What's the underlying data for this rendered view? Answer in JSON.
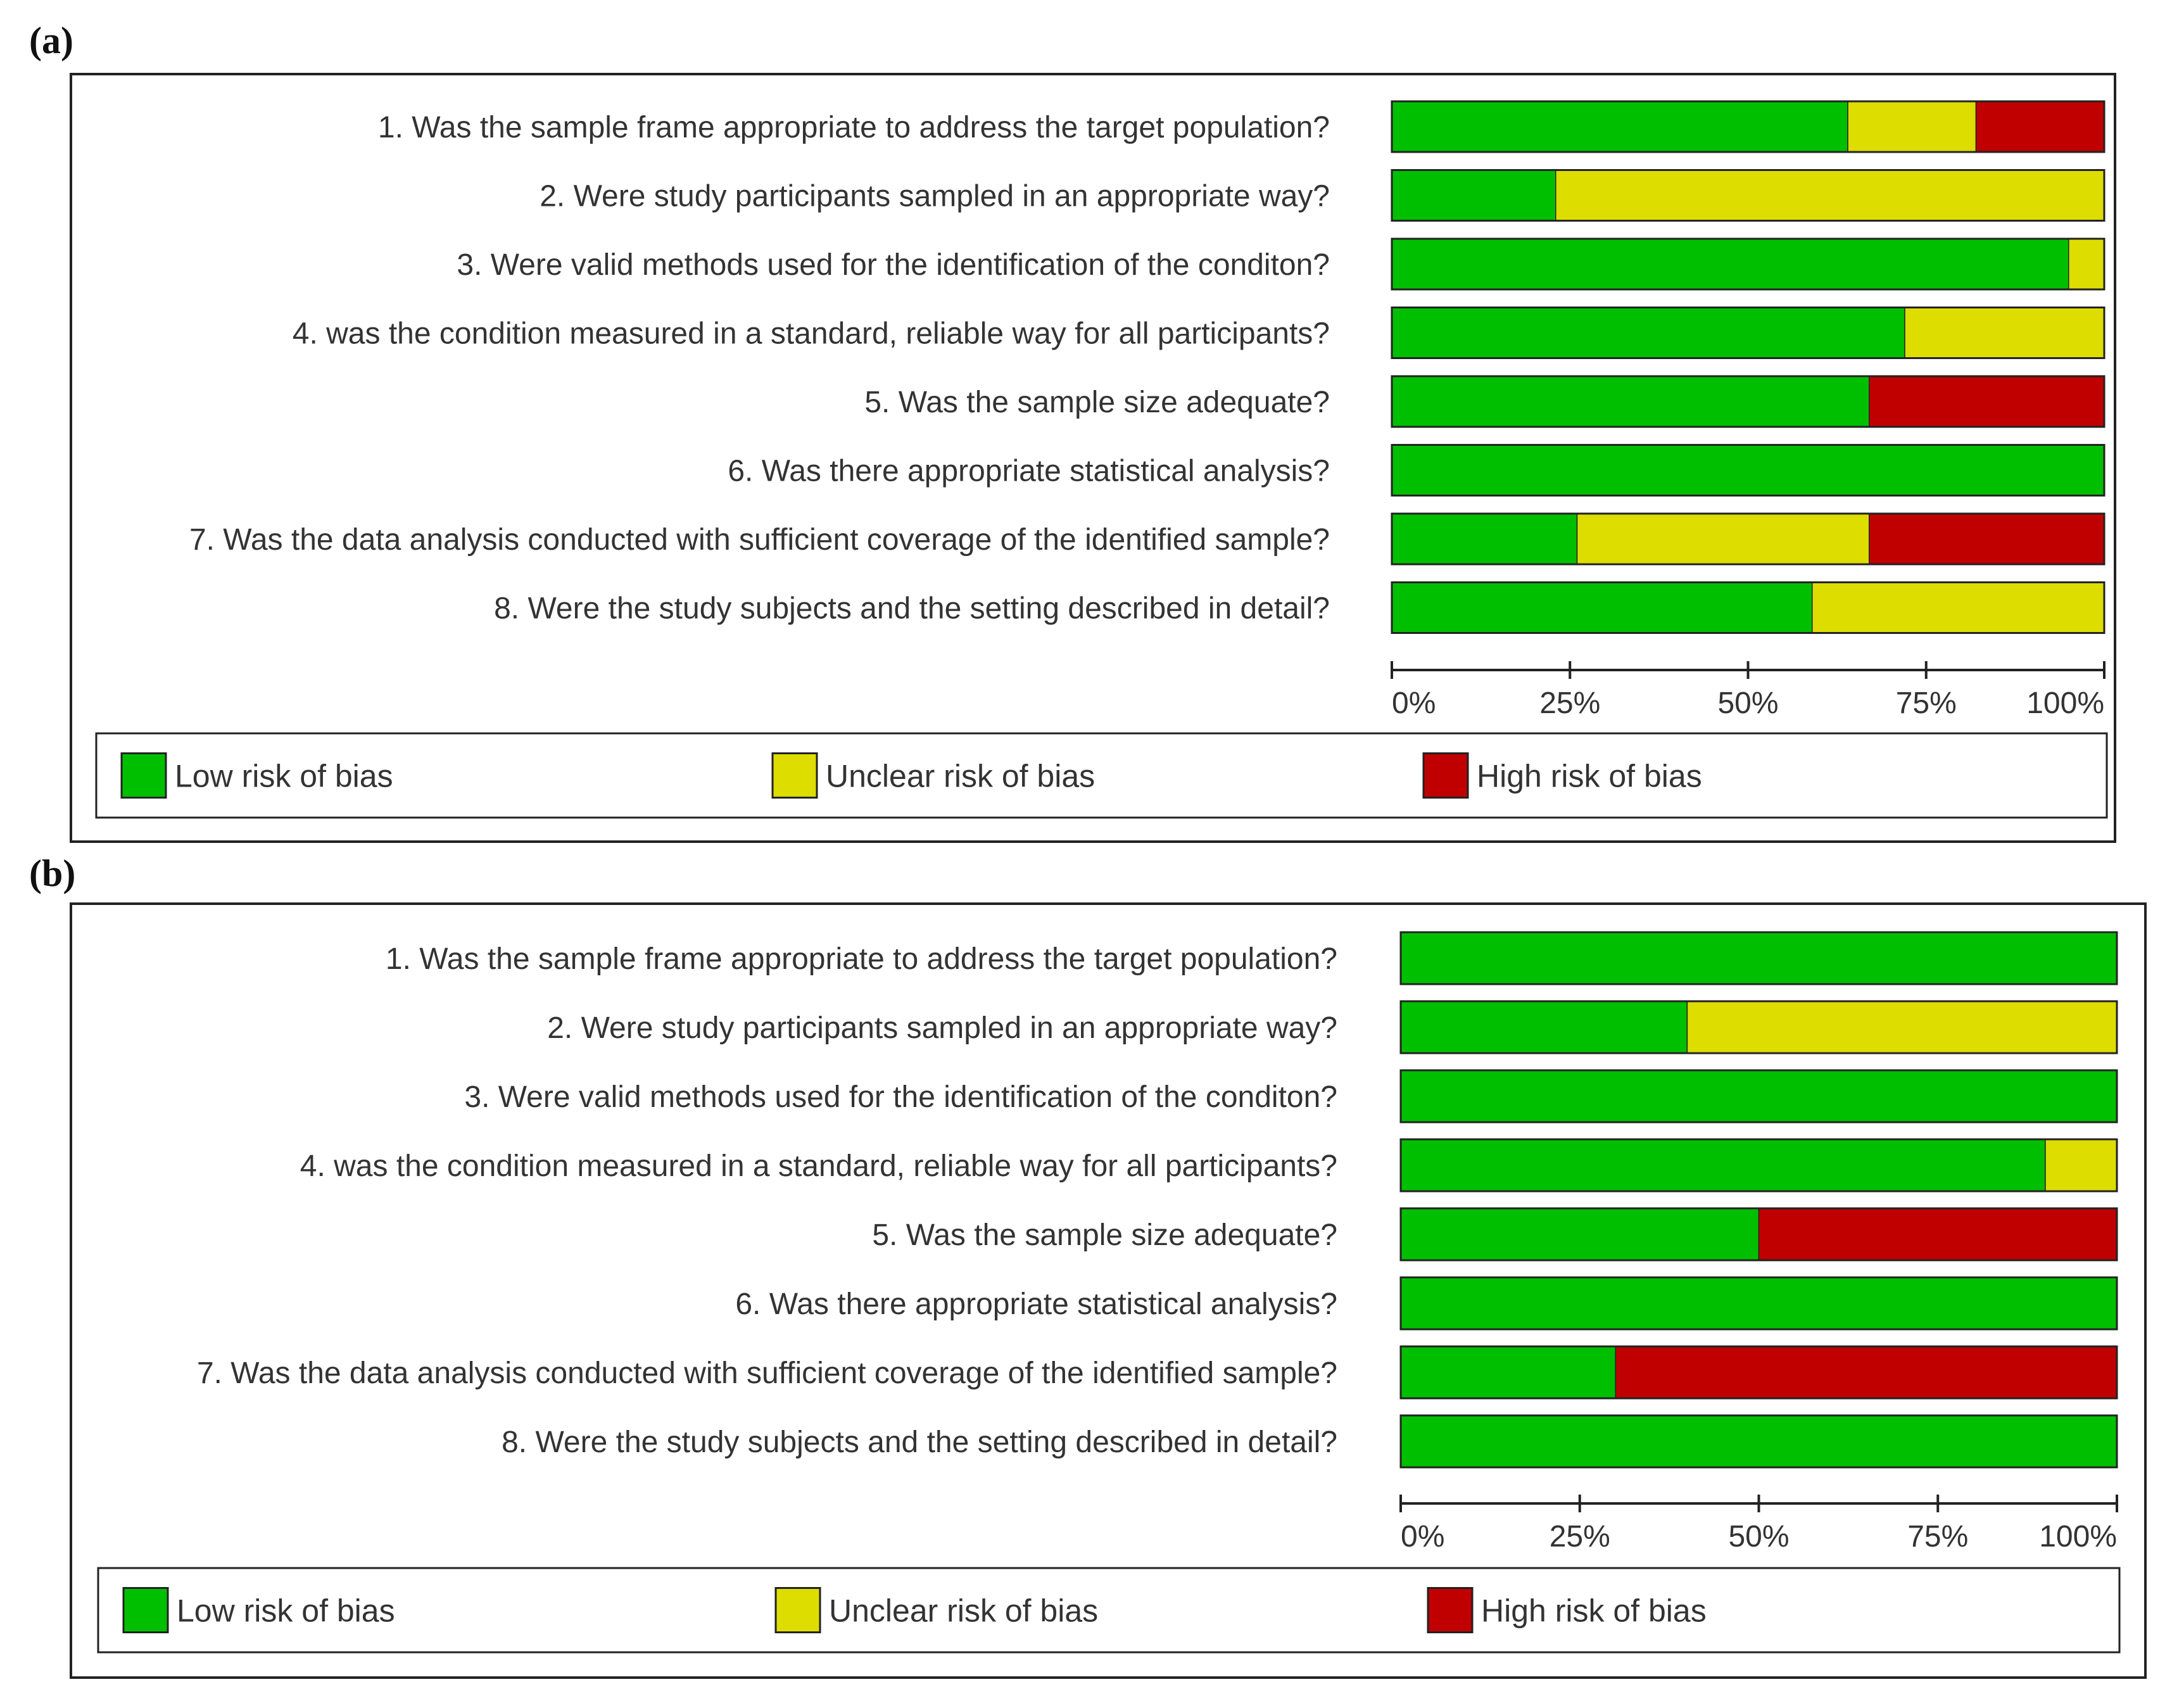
{
  "colors": {
    "low": "#00bf00",
    "unclear": "#dddd00",
    "high": "#c00000",
    "axis": "#222222",
    "text": "#333333"
  },
  "legend": [
    {
      "key": "low",
      "label": "Low risk of bias"
    },
    {
      "key": "unclear",
      "label": "Unclear risk of bias"
    },
    {
      "key": "high",
      "label": "High risk of bias"
    }
  ],
  "chart_data": [
    {
      "panel": "(a)",
      "type": "bar",
      "orientation": "horizontal-stacked",
      "xlim": [
        0,
        100
      ],
      "ticks": [
        "0%",
        "25%",
        "50%",
        "75%",
        "100%"
      ],
      "categories": [
        "1. Was the sample frame appropriate to address the target population?",
        "2. Were study participants sampled in an appropriate way?",
        "3. Were valid methods used for the identification of the conditon?",
        "4. was the condition measured in a standard, reliable way for all participants?",
        "5. Was the sample size adequate?",
        "6. Was there appropriate statistical analysis?",
        "7. Was the data analysis conducted with sufficient coverage of the identified sample?",
        "8. Were the study subjects and the setting described in detail?"
      ],
      "series": [
        {
          "name": "Low risk of bias",
          "key": "low",
          "values": [
            64,
            23,
            95,
            72,
            67,
            100,
            26,
            59
          ]
        },
        {
          "name": "Unclear risk of bias",
          "key": "unclear",
          "values": [
            18,
            77,
            5,
            28,
            0,
            0,
            41,
            41
          ]
        },
        {
          "name": "High risk of bias",
          "key": "high",
          "values": [
            18,
            0,
            0,
            0,
            33,
            0,
            33,
            0
          ]
        }
      ]
    },
    {
      "panel": "(b)",
      "type": "bar",
      "orientation": "horizontal-stacked",
      "xlim": [
        0,
        100
      ],
      "ticks": [
        "0%",
        "25%",
        "50%",
        "75%",
        "100%"
      ],
      "categories": [
        "1. Was the sample frame appropriate to address the target population?",
        "2. Were study participants sampled in an appropriate way?",
        "3. Were valid methods used for the identification of the conditon?",
        "4. was the condition measured in a standard, reliable way for all participants?",
        "5. Was the sample size adequate?",
        "6. Was there appropriate statistical analysis?",
        "7. Was the data analysis conducted with sufficient coverage of the identified sample?",
        "8. Were the study subjects and the setting described in detail?"
      ],
      "series": [
        {
          "name": "Low risk of bias",
          "key": "low",
          "values": [
            100,
            40,
            100,
            90,
            50,
            100,
            30,
            100
          ]
        },
        {
          "name": "Unclear risk of bias",
          "key": "unclear",
          "values": [
            0,
            60,
            0,
            10,
            0,
            0,
            0,
            0
          ]
        },
        {
          "name": "High risk of bias",
          "key": "high",
          "values": [
            0,
            0,
            0,
            0,
            50,
            0,
            70,
            0
          ]
        }
      ]
    }
  ]
}
